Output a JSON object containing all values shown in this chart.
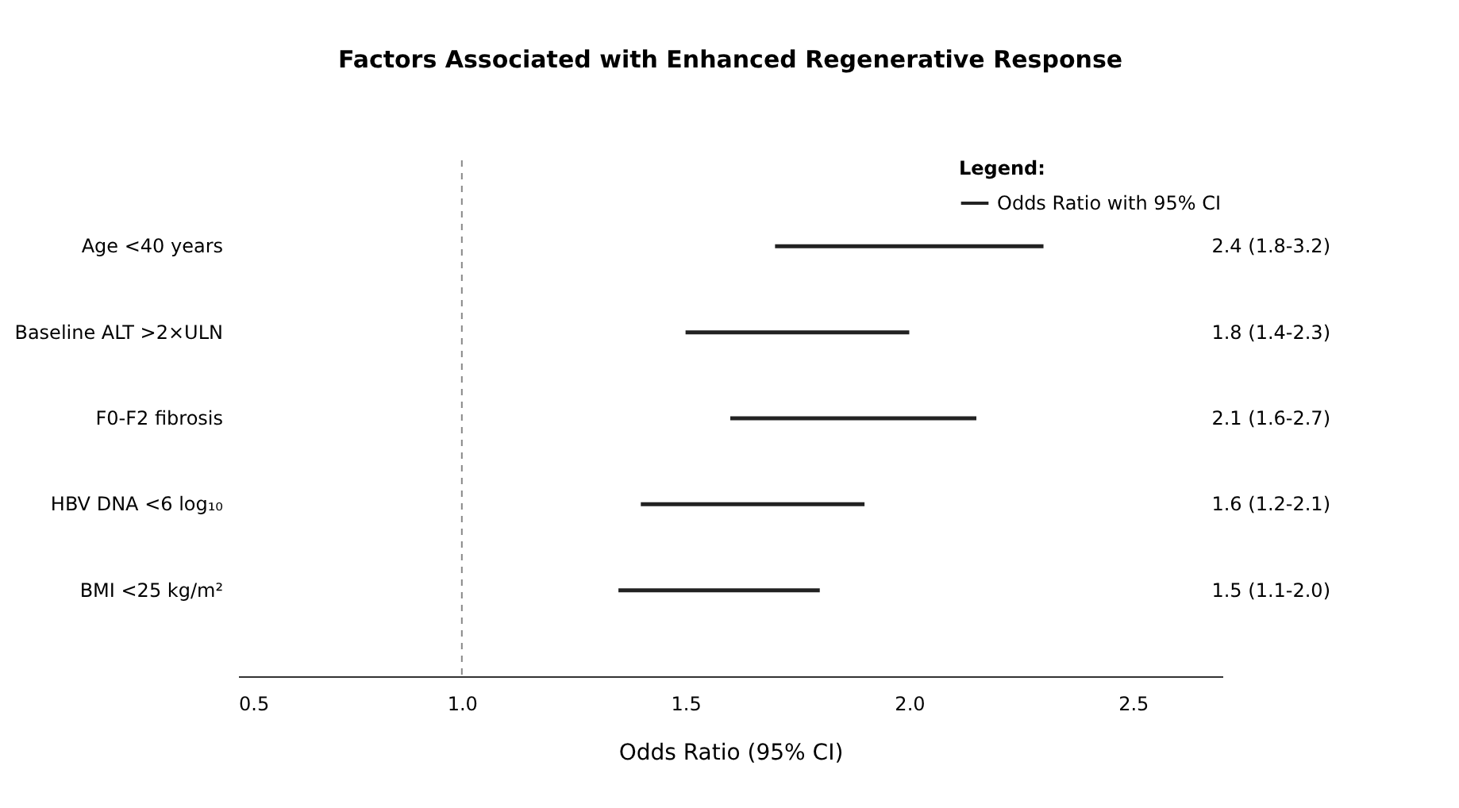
{
  "chart_data": {
    "type": "bar",
    "orientation": "horizontal",
    "title": "Factors Associated with Enhanced Regenerative Response",
    "xlabel": "Odds Ratio (95% CI)",
    "legend_title": "Legend:",
    "legend": "top right",
    "grid": false,
    "categories": [
      "Age <40 years",
      "Baseline ALT >2×ULN",
      "F0-F2 fibrosis",
      "HBV DNA <6 log₁₀",
      "BMI <25 kg/m²"
    ],
    "series": [
      {
        "name": "Odds Ratio with 95% CI",
        "color": "#222222",
        "base": [
          1.7,
          1.5,
          1.6,
          1.4,
          1.35
        ],
        "values": [
          0.6,
          0.5,
          0.55,
          0.5,
          0.45
        ]
      }
    ],
    "annotations": [
      "2.4 (1.8-3.2)",
      "1.8 (1.4-2.3)",
      "2.1 (1.6-2.7)",
      "1.6 (1.2-2.1)",
      "1.5 (1.1-2.0)"
    ],
    "ref_lines": [
      {
        "axis": "x",
        "value": 1,
        "color": "#888888",
        "line_style": "dashed"
      }
    ],
    "xlim": [
      0.5,
      2.7
    ],
    "xticks": [
      {
        "value": 0.5,
        "label": "0.5"
      },
      {
        "value": 1,
        "label": "1.0"
      },
      {
        "value": 1.5,
        "label": "1.5"
      },
      {
        "value": 2,
        "label": "2.0"
      },
      {
        "value": 2.5,
        "label": "2.5"
      }
    ]
  }
}
